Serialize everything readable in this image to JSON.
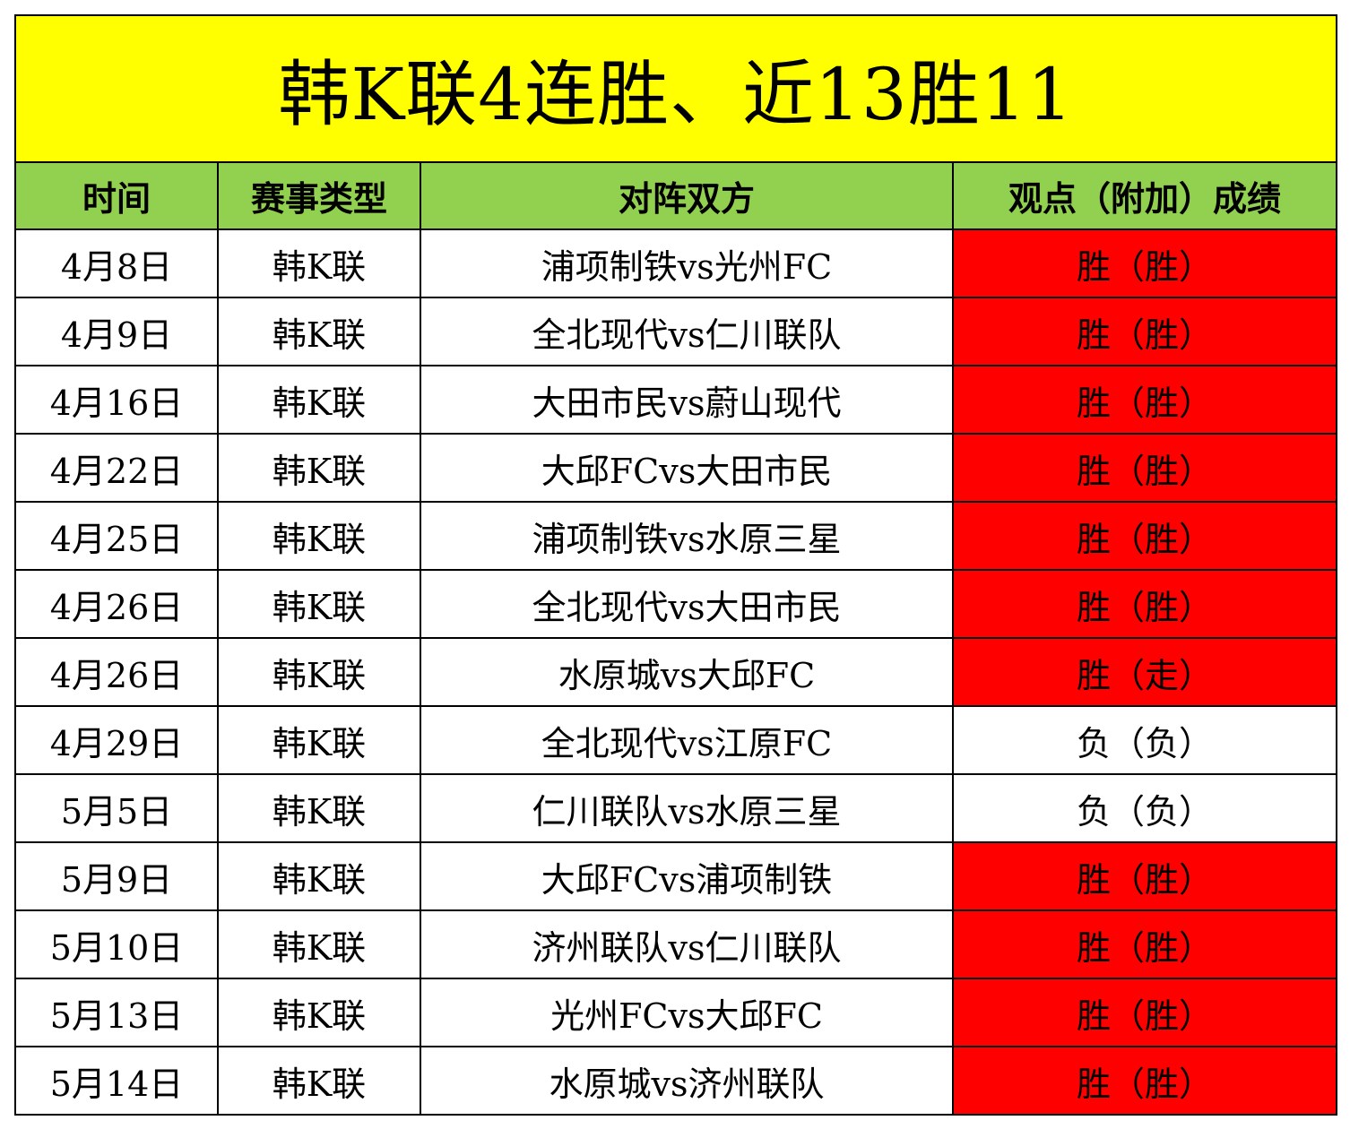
{
  "title": "韩K联4连胜、近13胜11",
  "headers": [
    "时间",
    "赛事类型",
    "对阵双方",
    "观点（附加）成绩"
  ],
  "colors": {
    "title_bg": "#ffff00",
    "header_bg": "#92d050",
    "win_bg": "#ff0000",
    "lose_bg": "#ffffff"
  },
  "rows": [
    {
      "date": "4月8日",
      "league": "韩K联",
      "match": "浦项制铁vs光州FC",
      "result": "胜（胜）",
      "status": "win"
    },
    {
      "date": "4月9日",
      "league": "韩K联",
      "match": "全北现代vs仁川联队",
      "result": "胜（胜）",
      "status": "win"
    },
    {
      "date": "4月16日",
      "league": "韩K联",
      "match": "大田市民vs蔚山现代",
      "result": "胜（胜）",
      "status": "win"
    },
    {
      "date": "4月22日",
      "league": "韩K联",
      "match": "大邱FCvs大田市民",
      "result": "胜（胜）",
      "status": "win"
    },
    {
      "date": "4月25日",
      "league": "韩K联",
      "match": "浦项制铁vs水原三星",
      "result": "胜（胜）",
      "status": "win"
    },
    {
      "date": "4月26日",
      "league": "韩K联",
      "match": "全北现代vs大田市民",
      "result": "胜（胜）",
      "status": "win"
    },
    {
      "date": "4月26日",
      "league": "韩K联",
      "match": "水原城vs大邱FC",
      "result": "胜（走）",
      "status": "win"
    },
    {
      "date": "4月29日",
      "league": "韩K联",
      "match": "全北现代vs江原FC",
      "result": "负（负）",
      "status": "lose"
    },
    {
      "date": "5月5日",
      "league": "韩K联",
      "match": "仁川联队vs水原三星",
      "result": "负（负）",
      "status": "lose"
    },
    {
      "date": "5月9日",
      "league": "韩K联",
      "match": "大邱FCvs浦项制铁",
      "result": "胜（胜）",
      "status": "win"
    },
    {
      "date": "5月10日",
      "league": "韩K联",
      "match": "济州联队vs仁川联队",
      "result": "胜（胜）",
      "status": "win"
    },
    {
      "date": "5月13日",
      "league": "韩K联",
      "match": "光州FCvs大邱FC",
      "result": "胜（胜）",
      "status": "win"
    },
    {
      "date": "5月14日",
      "league": "韩K联",
      "match": "水原城vs济州联队",
      "result": "胜（胜）",
      "status": "win"
    }
  ]
}
